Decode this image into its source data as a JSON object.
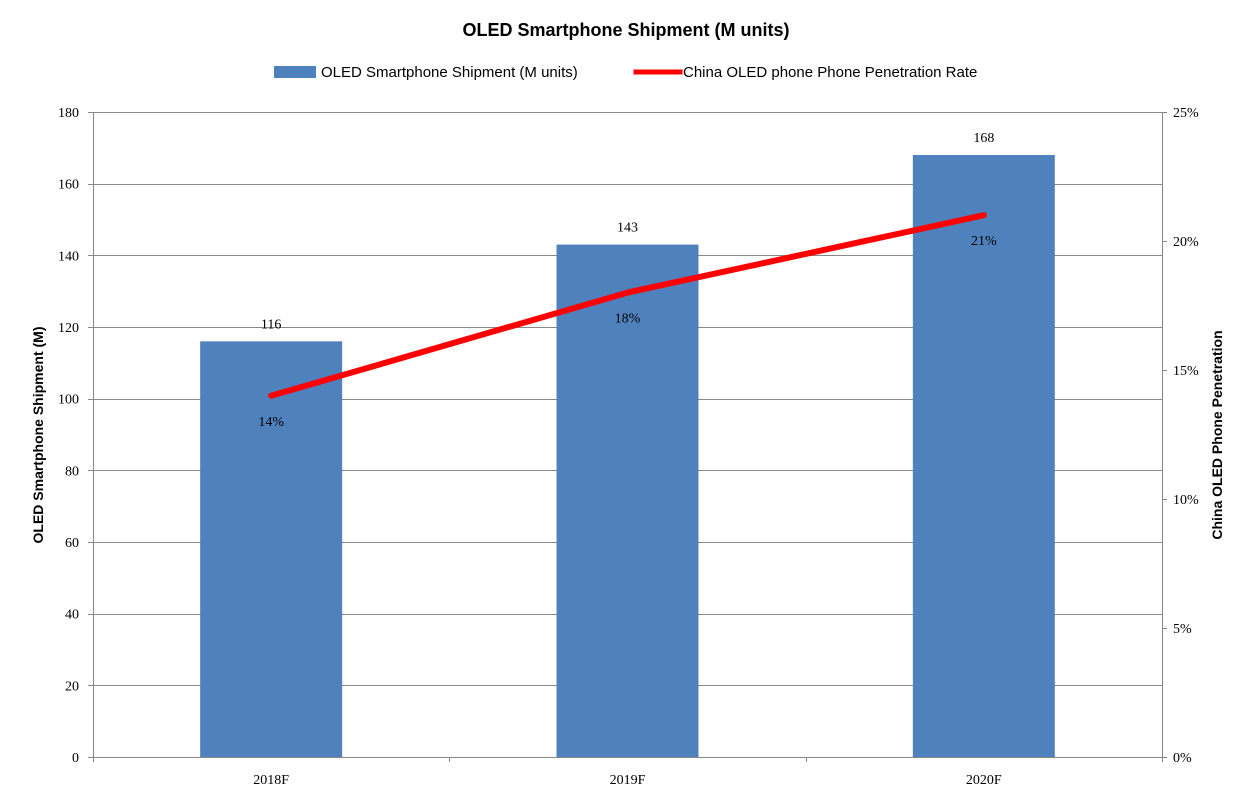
{
  "chart_data": {
    "type": "bar",
    "title": "OLED Smartphone Shipment (M units)",
    "categories": [
      "2018F",
      "2019F",
      "2020F"
    ],
    "series": [
      {
        "name": "OLED Smartphone Shipment (M units)",
        "type": "bar",
        "axis": "left",
        "values": [
          116,
          143,
          168
        ],
        "labels": [
          "116",
          "143",
          "168"
        ],
        "color": "#4F81BD"
      },
      {
        "name": "China OLED phone Phone Penetration Rate",
        "type": "line",
        "axis": "right",
        "values": [
          14,
          18,
          21
        ],
        "labels": [
          "14%",
          "18%",
          "21%"
        ],
        "color": "#FF0000"
      }
    ],
    "y_left": {
      "label": "OLED Smartphone Shipment (M)",
      "min": 0,
      "max": 180,
      "ticks": [
        0,
        20,
        40,
        60,
        80,
        100,
        120,
        140,
        160,
        180
      ],
      "tick_labels": [
        "0",
        "20",
        "40",
        "60",
        "80",
        "100",
        "120",
        "140",
        "160",
        "180"
      ]
    },
    "y_right": {
      "label": "China OLED Phone Penetration",
      "min": 0,
      "max": 25,
      "ticks": [
        0,
        5,
        10,
        15,
        20,
        25
      ],
      "tick_labels": [
        "0%",
        "5%",
        "10%",
        "15%",
        "20%",
        "25%"
      ]
    },
    "grid": true,
    "legend_position": "top"
  }
}
